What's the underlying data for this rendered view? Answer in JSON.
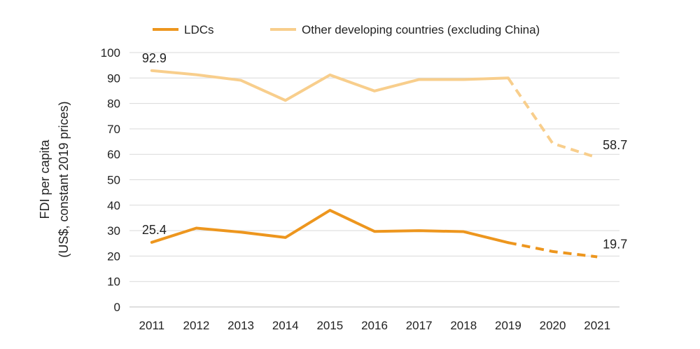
{
  "chart_data": {
    "type": "line",
    "title": "",
    "xlabel": "",
    "ylabel_line1": "FDI per capita",
    "ylabel_line2": "(US$, constant 2019 prices)",
    "ylim": [
      0,
      100
    ],
    "ytick_step": 10,
    "categories": [
      "2011",
      "2012",
      "2013",
      "2014",
      "2015",
      "2016",
      "2017",
      "2018",
      "2019",
      "2020",
      "2021"
    ],
    "dashed_from_index": 8,
    "grid": "horizontal",
    "legend_position": "top",
    "series": [
      {
        "name": "LDCs",
        "color": "#ED961E",
        "values": [
          25.4,
          31.0,
          29.4,
          27.3,
          38.0,
          29.7,
          30.0,
          29.6,
          25.3,
          21.8,
          19.7
        ],
        "labels": [
          {
            "index": 0,
            "text": "25.4"
          },
          {
            "index": 10,
            "text": "19.7"
          }
        ]
      },
      {
        "name": "Other developing countries (excluding China)",
        "color": "#F8CE8C",
        "values": [
          92.9,
          91.3,
          89.1,
          81.2,
          91.2,
          84.9,
          89.4,
          89.4,
          90.0,
          64.3,
          58.7
        ],
        "labels": [
          {
            "index": 0,
            "text": "92.9"
          },
          {
            "index": 10,
            "text": "58.7"
          }
        ]
      }
    ]
  }
}
